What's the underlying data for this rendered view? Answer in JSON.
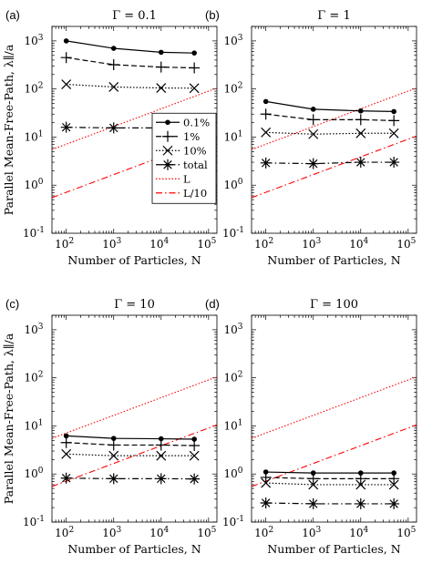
{
  "chart_data": {
    "type": "line",
    "xscale": "log",
    "yscale": "log",
    "xlim": [
      50,
      150000
    ],
    "ylim": [
      0.1,
      2000
    ],
    "xticks": [
      {
        "value": 100,
        "base": "10",
        "exp": "2"
      },
      {
        "value": 1000,
        "base": "10",
        "exp": "3"
      },
      {
        "value": 10000,
        "base": "10",
        "exp": "4"
      },
      {
        "value": 100000,
        "base": "10",
        "exp": "5"
      }
    ],
    "yticks": [
      {
        "value": 0.1,
        "base": "10",
        "exp": "-1"
      },
      {
        "value": 1,
        "base": "10",
        "exp": "0"
      },
      {
        "value": 10,
        "base": "10",
        "exp": "1"
      },
      {
        "value": 100,
        "base": "10",
        "exp": "2"
      },
      {
        "value": 1000,
        "base": "10",
        "exp": "3"
      }
    ],
    "xlabel": "Number of Particles, N",
    "ylabel": "Parallel Mean-Free-Path, λ∥/a",
    "legend": {
      "panel": 0,
      "placement": "lower-right",
      "entries": [
        {
          "label": "0.1%",
          "series": "0.1%"
        },
        {
          "label": "1%",
          "series": "1%"
        },
        {
          "label": "10%",
          "series": "10%"
        },
        {
          "label": "total",
          "series": "total"
        },
        {
          "label": "L",
          "series": "L"
        },
        {
          "label": "L/10",
          "series": "L/10"
        }
      ]
    },
    "series_styles": {
      "0.1%": {
        "color": "#000000",
        "dash": "",
        "marker": "dot"
      },
      "1%": {
        "color": "#000000",
        "dash": "6,3",
        "marker": "plus"
      },
      "10%": {
        "color": "#000000",
        "dash": "1.5,2",
        "marker": "x"
      },
      "total": {
        "color": "#000000",
        "dash": "7,3,1.5,3",
        "marker": "star"
      },
      "L": {
        "color": "#ff0000",
        "dash": "1.5,2",
        "marker": "none"
      },
      "L/10": {
        "color": "#ff0000",
        "dash": "7,3,1.5,3",
        "marker": "none"
      }
    },
    "reference_lines": [
      {
        "name": "L",
        "x": [
          50,
          150000
        ],
        "y": [
          5.5,
          105
        ]
      },
      {
        "name": "L/10",
        "x": [
          50,
          150000
        ],
        "y": [
          0.55,
          10.5
        ]
      }
    ],
    "x": [
      100,
      1000,
      10000,
      50000
    ],
    "panels": [
      {
        "letter": "(a)",
        "title": "Γ = 0.1",
        "series": [
          {
            "name": "0.1%",
            "values": [
              1000,
              700,
              580,
              560
            ]
          },
          {
            "name": "1%",
            "values": [
              450,
              320,
              285,
              275
            ]
          },
          {
            "name": "10%",
            "values": [
              125,
              110,
              105,
              104
            ]
          },
          {
            "name": "total",
            "values": [
              16,
              15.5,
              15.5,
              15.5
            ]
          }
        ]
      },
      {
        "letter": "(b)",
        "title": "Γ = 1",
        "series": [
          {
            "name": "0.1%",
            "values": [
              55,
              38,
              35,
              34
            ]
          },
          {
            "name": "1%",
            "values": [
              30,
              23,
              23,
              22
            ]
          },
          {
            "name": "10%",
            "values": [
              12.5,
              11.5,
              12,
              12
            ]
          },
          {
            "name": "total",
            "values": [
              2.9,
              2.8,
              3.0,
              3.0
            ]
          }
        ]
      },
      {
        "letter": "(c)",
        "title": "Γ = 10",
        "series": [
          {
            "name": "0.1%",
            "values": [
              6.2,
              5.5,
              5.4,
              5.3
            ]
          },
          {
            "name": "1%",
            "values": [
              4.5,
              4.0,
              4.0,
              3.9
            ]
          },
          {
            "name": "10%",
            "values": [
              2.6,
              2.4,
              2.4,
              2.4
            ]
          },
          {
            "name": "total",
            "values": [
              0.82,
              0.8,
              0.8,
              0.79
            ]
          }
        ]
      },
      {
        "letter": "(d)",
        "title": "Γ = 100",
        "series": [
          {
            "name": "0.1%",
            "values": [
              1.1,
              1.05,
              1.05,
              1.05
            ]
          },
          {
            "name": "1%",
            "values": [
              0.85,
              0.8,
              0.8,
              0.8
            ]
          },
          {
            "name": "10%",
            "values": [
              0.65,
              0.6,
              0.6,
              0.6
            ]
          },
          {
            "name": "total",
            "values": [
              0.25,
              0.24,
              0.24,
              0.24
            ]
          }
        ]
      }
    ]
  }
}
